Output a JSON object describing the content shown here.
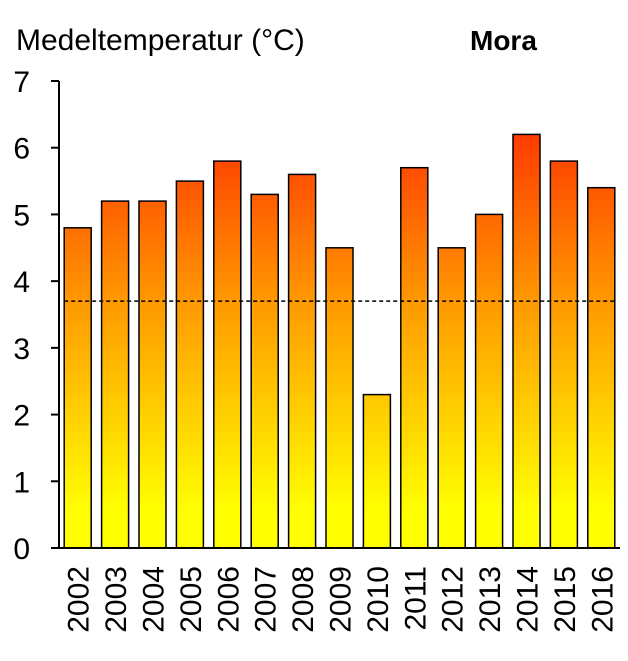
{
  "chart_data": {
    "type": "bar",
    "title": "Mora",
    "ylabel": "Medeltemperatur  (°C)",
    "xlabel": "",
    "categories": [
      "2002",
      "2003",
      "2004",
      "2005",
      "2006",
      "2007",
      "2008",
      "2009",
      "2010",
      "2011",
      "2012",
      "2013",
      "2014",
      "2015",
      "2016"
    ],
    "values": [
      4.8,
      5.2,
      5.2,
      5.5,
      5.8,
      5.3,
      5.6,
      4.5,
      2.3,
      5.7,
      4.5,
      5.0,
      6.2,
      5.8,
      5.4
    ],
    "reference_line": 3.7,
    "ylim": [
      0,
      7
    ],
    "yticks": [
      "0",
      "1",
      "2",
      "3",
      "4",
      "5",
      "6",
      "7"
    ],
    "grid": false,
    "colors": {
      "bar_top": "#ff1a00",
      "bar_mid": "#ff9900",
      "bar_bottom": "#ffff00",
      "outline": "#000000"
    }
  }
}
